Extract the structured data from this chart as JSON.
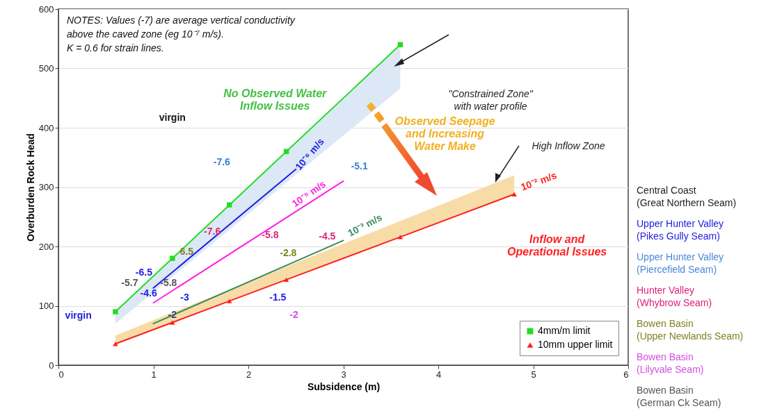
{
  "chart_data": {
    "type": "line",
    "xlabel": "Subsidence (m)",
    "ylabel": "Overburden Rock Head",
    "xlim": [
      0,
      6
    ],
    "xticks": [
      0,
      1,
      2,
      3,
      4,
      5,
      6
    ],
    "ylim": [
      0,
      600
    ],
    "yticks": [
      0,
      100,
      200,
      300,
      400,
      500,
      600
    ],
    "grid": "y",
    "legend": "bottom right",
    "series": [
      {
        "color": "#2020e0",
        "x": [
          1,
          2.5
        ],
        "values": [
          130,
          330
        ],
        "marker": "none"
      },
      {
        "color": "#ff20e0",
        "x": [
          1,
          3
        ],
        "values": [
          105,
          310
        ],
        "marker": "none"
      },
      {
        "color": "#3a8a5a",
        "x": [
          1,
          3
        ],
        "values": [
          70,
          210
        ],
        "marker": "none"
      },
      {
        "name": "4mm/m limit",
        "color": "#22dd22",
        "x": [
          0.6,
          1.2,
          1.8,
          2.4,
          3.6
        ],
        "values": [
          90,
          180,
          270,
          360,
          540
        ],
        "lower": [
          70,
          149,
          228,
          308,
          466
        ],
        "upper": [
          90,
          180,
          270,
          360,
          540
        ],
        "marker": "square"
      },
      {
        "name": "10mm upper limit",
        "color": "#ff2020",
        "x": [
          0.6,
          1.2,
          1.8,
          2.4,
          3.6,
          4.8
        ],
        "values": [
          36,
          72,
          108,
          144,
          216,
          288
        ],
        "lower": [
          36,
          72,
          108,
          144,
          216,
          288
        ],
        "upper": [
          50,
          89,
          127,
          166,
          243,
          320
        ],
        "marker": "triangle"
      }
    ],
    "annotations": [
      "NOTES: Values (-7) are average vertical conductivity\nabove the caved zone (eg 10⁻⁷ m/s).\nK = 0.6 for strain lines.",
      "\"Constrained Zone\"\nwith water profile",
      "No Observed Water\nInflow Issues",
      "virgin",
      "-7.6",
      "10⁻⁶ m/s",
      "-5.1",
      "10⁻⁵ m/s",
      "-7.6",
      "-5.8",
      "-4.5",
      "10⁻³ m/s",
      "6.5",
      "-6.5",
      "-5.7",
      "-5.8",
      "-4.6",
      "-3",
      "-2.8",
      "-1.5",
      "-2",
      "-2",
      "virgin",
      "Observed Seepage\nand Increasing\nWater Make",
      "High Inflow Zone",
      "10⁻² m/s",
      "Inflow and\nOperational Issues",
      "Central Coast\n(Great Northern Seam)",
      "Upper Hunter Valley\n(Pikes Gully Seam)",
      "Upper Hunter Valley\n(Piercefield Seam)",
      "Hunter Valley\n(Whybrow Seam)",
      "Bowen Basin\n(Upper Newlands Seam)",
      "Bowen Basin\n(Lilyvale Seam)",
      "Bowen Basin\n(German Ck Seam)"
    ]
  }
}
